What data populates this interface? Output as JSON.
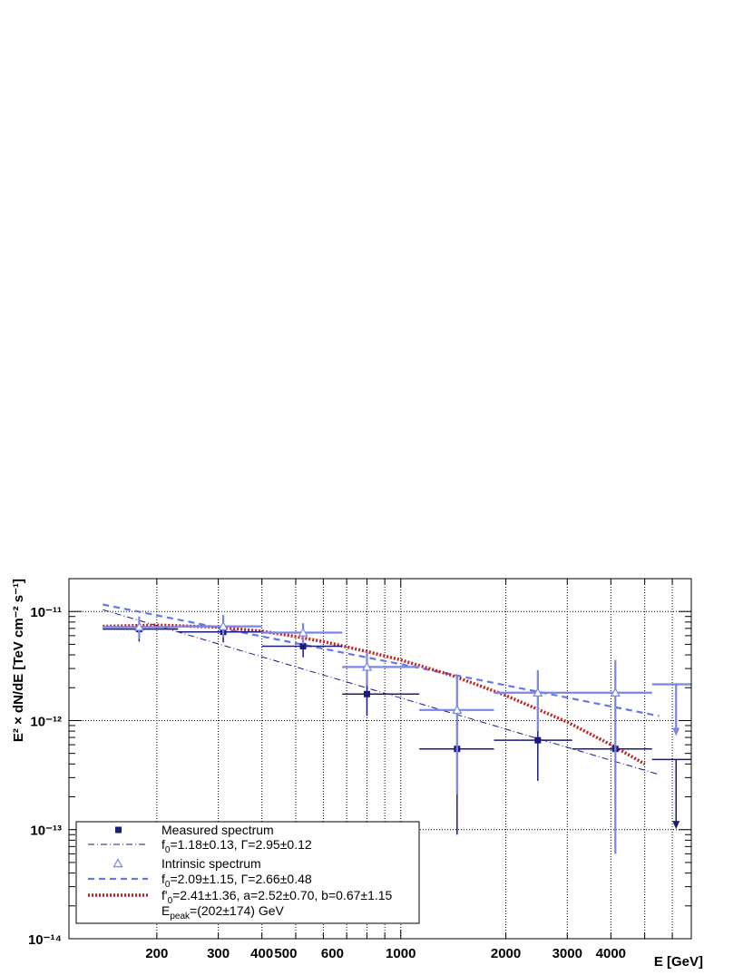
{
  "chart_data": {
    "type": "scatter",
    "xscale": "log",
    "yscale": "log",
    "xlim": [
      112,
      6800
    ],
    "ylim": [
      1e-14,
      2e-11
    ],
    "grid": true,
    "xlabel": "E [GeV]",
    "ylabel": "E² × dN/dE [TeV cm⁻² s⁻¹]",
    "x_ticks": [
      {
        "value": 200,
        "label": "200"
      },
      {
        "value": 300,
        "label": "300"
      },
      {
        "value": 400,
        "label": "400"
      },
      {
        "value": 500,
        "label": "500"
      },
      {
        "value": 600,
        "label": "600"
      },
      {
        "value": 1000,
        "label": "1000"
      },
      {
        "value": 2000,
        "label": "2000"
      },
      {
        "value": 3000,
        "label": "3000"
      },
      {
        "value": 4000,
        "label": "4000"
      }
    ],
    "y_ticks": [
      {
        "value": 1e-14,
        "label": "10⁻¹⁴"
      },
      {
        "value": 1e-13,
        "label": "10⁻¹³"
      },
      {
        "value": 1e-12,
        "label": "10⁻¹²"
      },
      {
        "value": 1e-11,
        "label": "10⁻¹¹"
      }
    ],
    "legend_position": "bottom-left",
    "series": [
      {
        "name": "Measured spectrum",
        "marker": "square",
        "color": "#1a1a80",
        "points": [
          {
            "x": 178,
            "y": 6.9e-12,
            "xlo": 140,
            "xhi": 230,
            "ylo": 5.3e-12,
            "yhi": 8.6e-12
          },
          {
            "x": 310,
            "y": 6.5e-12,
            "xlo": 230,
            "xhi": 400,
            "ylo": 5.2e-12,
            "yhi": 8.2e-12
          },
          {
            "x": 525,
            "y": 4.8e-12,
            "xlo": 400,
            "xhi": 680,
            "ylo": 3.8e-12,
            "yhi": 6.1e-12
          },
          {
            "x": 800,
            "y": 1.75e-12,
            "xlo": 680,
            "xhi": 1130,
            "ylo": 1.1e-12,
            "yhi": 2.6e-12
          },
          {
            "x": 1450,
            "y": 5.5e-13,
            "xlo": 1130,
            "xhi": 1850,
            "ylo": 9e-14,
            "yhi": 1.2e-12
          },
          {
            "x": 2470,
            "y": 6.6e-13,
            "xlo": 1850,
            "xhi": 3100,
            "ylo": 2.8e-13,
            "yhi": 1.25e-12
          },
          {
            "x": 4120,
            "y": 5.5e-13,
            "xlo": 3100,
            "xhi": 5250,
            "ylo": 1.4e-13,
            "yhi": 1.15e-12
          }
        ],
        "upper_limits": [
          {
            "x": 6150,
            "y": 4.4e-13,
            "xlo": 5250,
            "xhi": 9000,
            "arrow_to": 1.05e-13
          }
        ]
      },
      {
        "name": "Intrinsic spectrum",
        "marker": "open-triangle",
        "color": "#7b85e6",
        "points": [
          {
            "x": 178,
            "y": 7.2e-12,
            "xlo": 140,
            "xhi": 230,
            "ylo": 5.6e-12,
            "yhi": 9e-12
          },
          {
            "x": 310,
            "y": 7.3e-12,
            "xlo": 230,
            "xhi": 400,
            "ylo": 5.8e-12,
            "yhi": 9.3e-12
          },
          {
            "x": 525,
            "y": 6.4e-12,
            "xlo": 400,
            "xhi": 680,
            "ylo": 5e-12,
            "yhi": 7.8e-12
          },
          {
            "x": 800,
            "y": 3.1e-12,
            "xlo": 680,
            "xhi": 1130,
            "ylo": 2.1e-12,
            "yhi": 4.3e-12
          },
          {
            "x": 1450,
            "y": 1.25e-12,
            "xlo": 1130,
            "xhi": 1850,
            "ylo": 2.1e-13,
            "yhi": 2.6e-12
          },
          {
            "x": 2470,
            "y": 1.8e-12,
            "xlo": 1850,
            "xhi": 3100,
            "ylo": 8e-13,
            "yhi": 2.9e-12
          },
          {
            "x": 4120,
            "y": 1.8e-12,
            "xlo": 3100,
            "xhi": 5250,
            "ylo": 6e-14,
            "yhi": 3.6e-12
          }
        ],
        "upper_limits": [
          {
            "x": 6150,
            "y": 2.15e-12,
            "xlo": 5250,
            "xhi": 9000,
            "arrow_to": 7.5e-13
          }
        ]
      }
    ],
    "fits": [
      {
        "name": "f₀=1.18±0.13, Γ=2.95±0.12",
        "style": "dash-dot",
        "color": "#1a1a80",
        "x": [
          140,
          5500
        ],
        "y": [
          1.04e-11,
          3.2e-13
        ]
      },
      {
        "name": "f₀=2.09±1.15, Γ=2.66±0.48",
        "style": "dashed",
        "color": "#6378e6",
        "x": [
          140,
          5500
        ],
        "y": [
          1.16e-11,
          1.1e-12
        ]
      },
      {
        "name": "f'₀=2.41±1.36, a=2.52±0.70, b=0.67±1.15",
        "extra": "Epeak=(202±174) GeV",
        "style": "dotted",
        "color": "#c0201e",
        "x": [
          140,
          200,
          300,
          400,
          500,
          600,
          800,
          1000,
          1400,
          2000,
          3000,
          4000,
          5000
        ],
        "y": [
          7.3e-12,
          7.5e-12,
          7.2e-12,
          6.6e-12,
          5.9e-12,
          5.3e-12,
          4.3e-12,
          3.6e-12,
          2.6e-12,
          1.7e-12,
          9.7e-13,
          6e-13,
          4e-13
        ]
      }
    ]
  },
  "legend": {
    "entries": [
      {
        "label": "Measured spectrum"
      },
      {
        "label": "f",
        "sub": "0",
        "rest": "=1.18±0.13, Γ=2.95±0.12"
      },
      {
        "label": "Intrinsic spectrum"
      },
      {
        "label": "f",
        "sub": "0",
        "rest": "=2.09±1.15, Γ=2.66±0.48"
      },
      {
        "label": "f'",
        "sub": "0",
        "rest": "=2.41±1.36, a=2.52±0.70, b=0.67±1.15"
      },
      {
        "label": "E",
        "sub": "peak",
        "rest": "=(202±174) GeV"
      }
    ]
  },
  "colors": {
    "measured": "#1a1a80",
    "intrinsic": "#7b85e6",
    "powerlaw_intrinsic": "#6378e6",
    "logparabola": "#c0201e"
  }
}
